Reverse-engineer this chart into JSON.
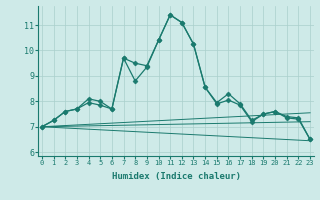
{
  "xlabel": "Humidex (Indice chaleur)",
  "background_color": "#ceeae8",
  "grid_color": "#aacfcc",
  "line_color": "#1a7a6e",
  "x_ticks": [
    0,
    1,
    2,
    3,
    4,
    5,
    6,
    7,
    8,
    9,
    10,
    11,
    12,
    13,
    14,
    15,
    16,
    17,
    18,
    19,
    20,
    21,
    22,
    23
  ],
  "y_ticks": [
    6,
    7,
    8,
    9,
    10,
    11
  ],
  "xlim": [
    -0.3,
    23.3
  ],
  "ylim": [
    5.85,
    11.75
  ],
  "line1_x": [
    0,
    1,
    2,
    3,
    4,
    5,
    6,
    7,
    8,
    9,
    10,
    11,
    12,
    13,
    14,
    15,
    16,
    17,
    18,
    19,
    20,
    21,
    22,
    23
  ],
  "line1_y": [
    7.0,
    7.25,
    7.6,
    7.7,
    7.95,
    7.85,
    7.7,
    9.7,
    9.5,
    9.4,
    10.4,
    11.4,
    11.1,
    10.25,
    8.55,
    7.95,
    8.3,
    7.9,
    7.25,
    7.5,
    7.6,
    7.4,
    7.35,
    6.5
  ],
  "line2_x": [
    0,
    1,
    2,
    3,
    4,
    5,
    6,
    7,
    8,
    9,
    10,
    11,
    12,
    13,
    14,
    15,
    16,
    17,
    18,
    19,
    20,
    21,
    22,
    23
  ],
  "line2_y": [
    7.0,
    7.25,
    7.6,
    7.7,
    8.1,
    8.0,
    7.7,
    9.7,
    8.8,
    9.35,
    10.4,
    11.4,
    11.1,
    10.25,
    8.55,
    7.9,
    8.05,
    7.85,
    7.2,
    7.5,
    7.6,
    7.35,
    7.3,
    6.5
  ],
  "line3_x": [
    0,
    23
  ],
  "line3_y": [
    7.0,
    7.55
  ],
  "line4_x": [
    0,
    23
  ],
  "line4_y": [
    7.0,
    7.2
  ],
  "line5_x": [
    0,
    23
  ],
  "line5_y": [
    7.0,
    6.45
  ]
}
